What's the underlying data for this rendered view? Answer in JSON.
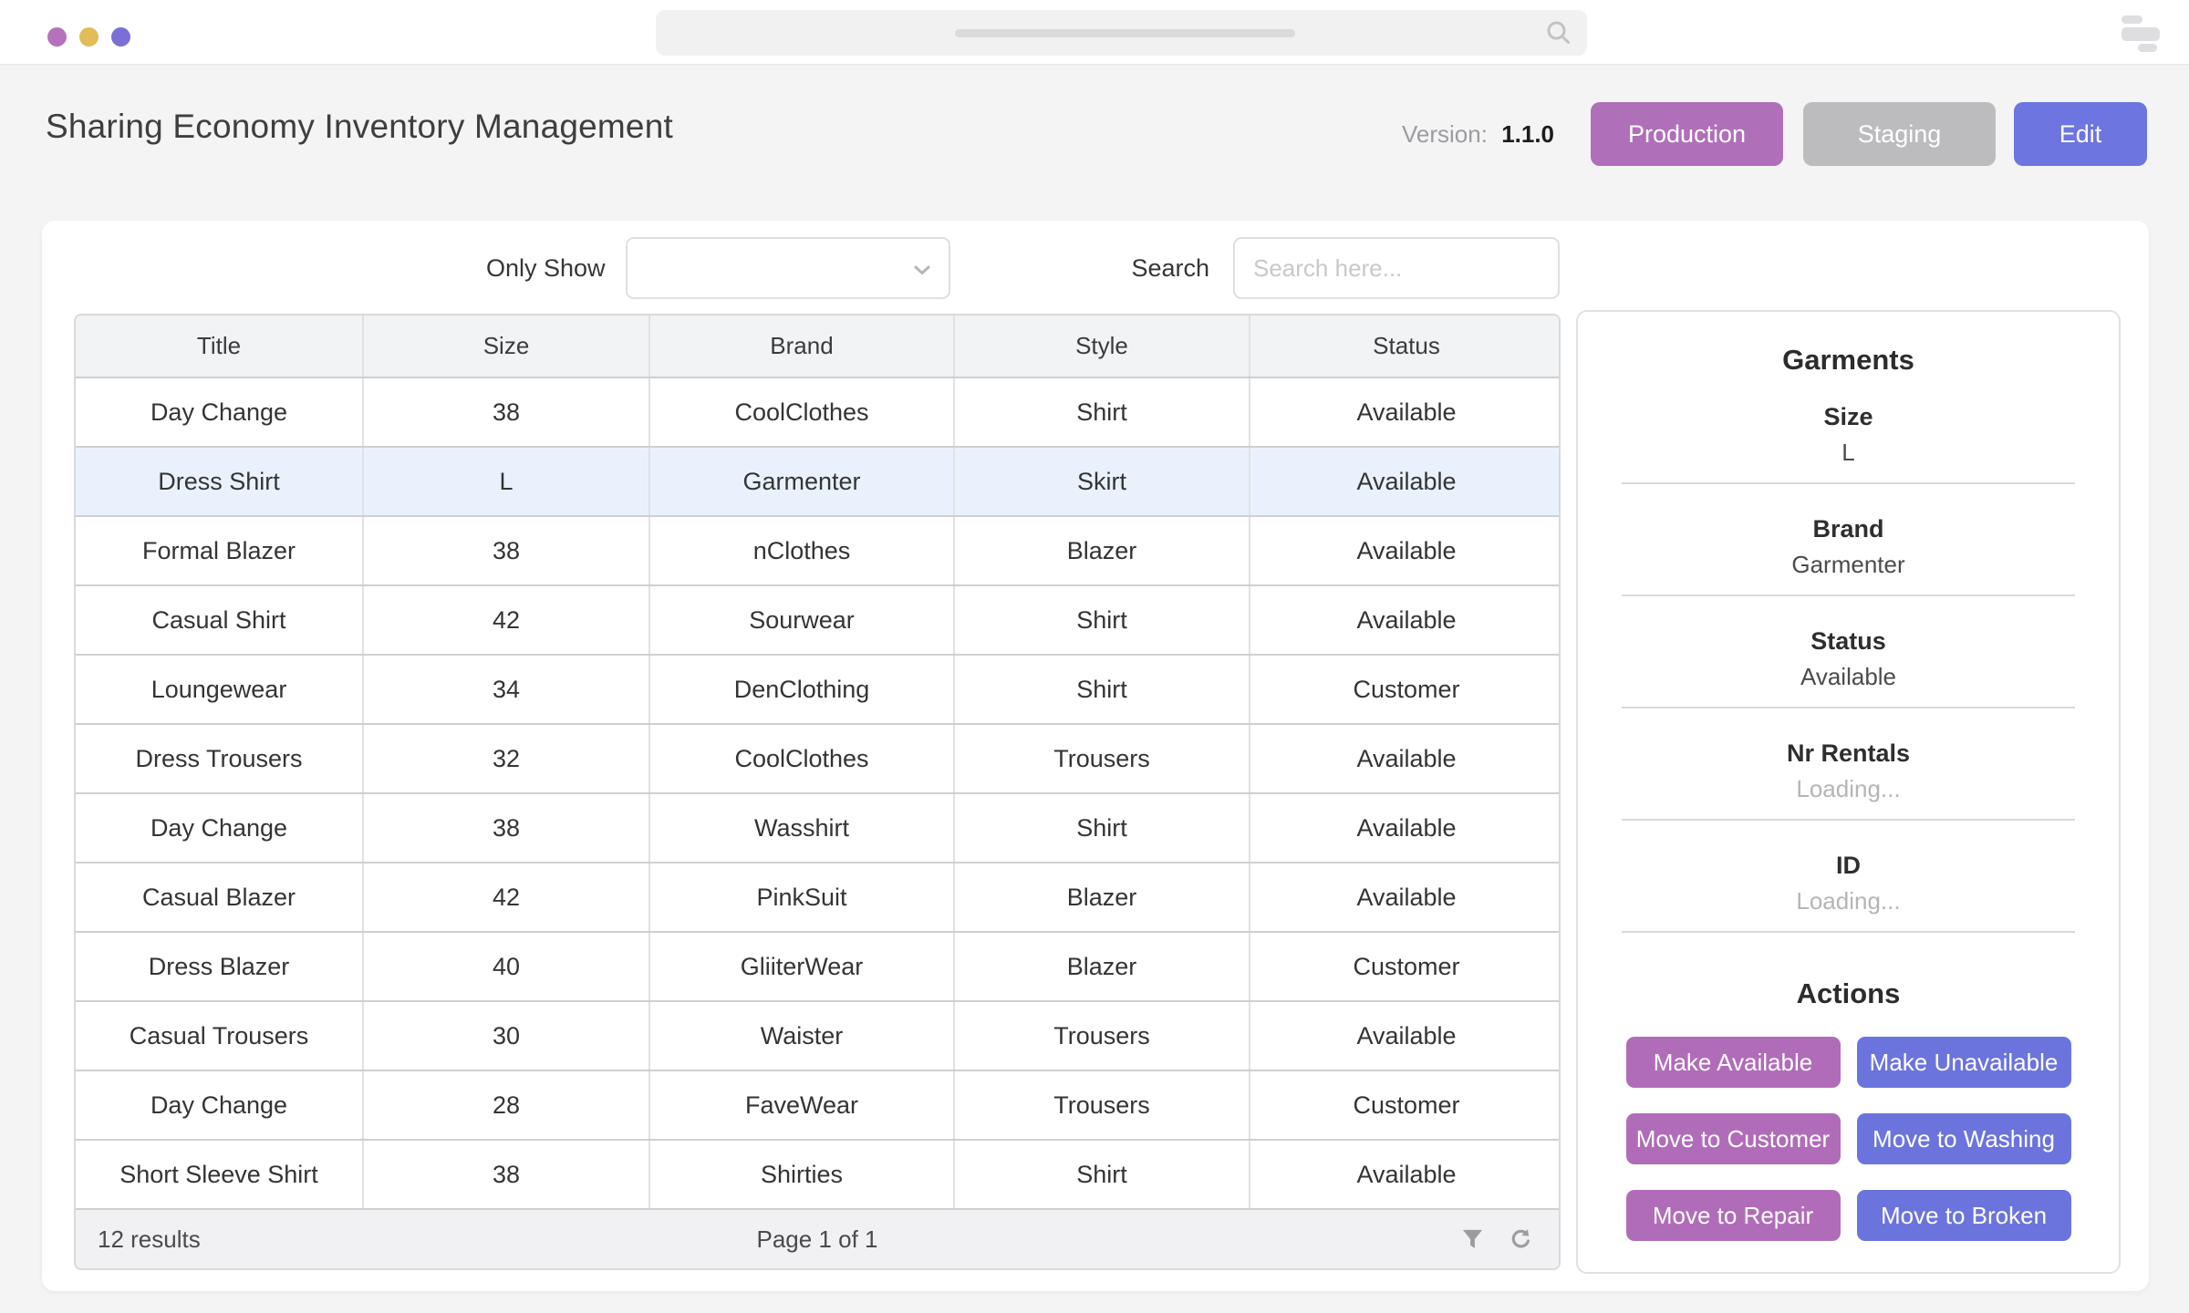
{
  "window": {
    "traffic_dot_colors": [
      "#b671bd",
      "#e2bc57",
      "#7a6fd6"
    ],
    "browser_search_value": "",
    "menu_icon": "stacked-bars-icon"
  },
  "header": {
    "title": "Sharing Economy Inventory Management",
    "version_label": "Version:",
    "version_value": "1.1.0",
    "env_buttons": [
      {
        "label": "Production",
        "color": "#b06fb9"
      },
      {
        "label": "Staging",
        "color": "#bcbcbf"
      },
      {
        "label": "Edit",
        "color": "#6c75e0"
      }
    ]
  },
  "filters": {
    "only_show_label": "Only Show",
    "only_show_value": "",
    "search_label": "Search",
    "search_placeholder": "Search here...",
    "search_value": ""
  },
  "table": {
    "columns": [
      "Title",
      "Size",
      "Brand",
      "Style",
      "Status"
    ],
    "highlighted_row_index": 1,
    "rows": [
      {
        "title": "Day Change",
        "size": "38",
        "brand": "CoolClothes",
        "style": "Shirt",
        "status": "Available"
      },
      {
        "title": "Dress Shirt",
        "size": "L",
        "brand": "Garmenter",
        "style": "Skirt",
        "status": "Available"
      },
      {
        "title": "Formal Blazer",
        "size": "38",
        "brand": "nClothes",
        "style": "Blazer",
        "status": "Available"
      },
      {
        "title": "Casual Shirt",
        "size": "42",
        "brand": "Sourwear",
        "style": "Shirt",
        "status": "Available"
      },
      {
        "title": "Loungewear",
        "size": "34",
        "brand": "DenClothing",
        "style": "Shirt",
        "status": "Customer"
      },
      {
        "title": "Dress Trousers",
        "size": "32",
        "brand": "CoolClothes",
        "style": "Trousers",
        "status": "Available"
      },
      {
        "title": "Day Change",
        "size": "38",
        "brand": "Wasshirt",
        "style": "Shirt",
        "status": "Available"
      },
      {
        "title": "Casual Blazer",
        "size": "42",
        "brand": "PinkSuit",
        "style": "Blazer",
        "status": "Available"
      },
      {
        "title": "Dress Blazer",
        "size": "40",
        "brand": "GliiterWear",
        "style": "Blazer",
        "status": "Customer"
      },
      {
        "title": "Casual Trousers",
        "size": "30",
        "brand": "Waister",
        "style": "Trousers",
        "status": "Available"
      },
      {
        "title": "Day Change",
        "size": "28",
        "brand": "FaveWear",
        "style": "Trousers",
        "status": "Customer"
      },
      {
        "title": "Short Sleeve Shirt",
        "size": "38",
        "brand": "Shirties",
        "style": "Shirt",
        "status": "Available"
      }
    ],
    "footer": {
      "results": "12 results",
      "page": "Page 1 of 1",
      "icons": [
        "filter-icon",
        "refresh-icon"
      ]
    }
  },
  "panel": {
    "title": "Garments",
    "fields": [
      {
        "label": "Size",
        "value": "L",
        "muted": false
      },
      {
        "label": "Brand",
        "value": "Garmenter",
        "muted": false
      },
      {
        "label": "Status",
        "value": "Available",
        "muted": false
      },
      {
        "label": "Nr Rentals",
        "value": "Loading...",
        "muted": true
      },
      {
        "label": "ID",
        "value": "Loading...",
        "muted": true
      }
    ],
    "actions_title": "Actions",
    "actions": [
      {
        "label": "Make Available",
        "variant": "purple"
      },
      {
        "label": "Make Unavailable",
        "variant": "blue"
      },
      {
        "label": "Move to Customer",
        "variant": "purple"
      },
      {
        "label": "Move to Washing",
        "variant": "blue"
      },
      {
        "label": "Move to Repair",
        "variant": "purple"
      },
      {
        "label": "Move to Broken",
        "variant": "blue"
      }
    ]
  },
  "colors": {
    "accent_purple": "#b16cb9",
    "accent_blue": "#6b74dc",
    "staging_gray": "#bcbcbf",
    "row_highlight": "#e9f2fc",
    "page_background": "#f4f4f5"
  }
}
